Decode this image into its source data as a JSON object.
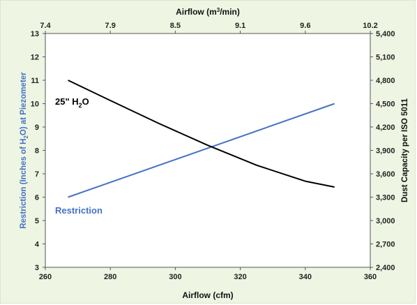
{
  "chart_data": {
    "type": "line",
    "title": "",
    "x_axis": {
      "label": "Airflow (cfm)",
      "range": [
        260,
        360
      ],
      "ticks": [
        260,
        280,
        300,
        320,
        340,
        360
      ]
    },
    "x2_axis": {
      "label_prefix": "Airflow (m",
      "label_sup": "3",
      "label_suffix": "/min)",
      "ticks": [
        "7.4",
        "7.9",
        "8.5",
        "9.1",
        "9.6",
        "10.2"
      ]
    },
    "y_axis": {
      "label_part1": "Restriction (Inches of H",
      "label_sub": "2",
      "label_part2": "O) at Piezometer",
      "range": [
        3,
        13
      ],
      "ticks": [
        3,
        4,
        5,
        6,
        7,
        8,
        9,
        10,
        11,
        12,
        13
      ]
    },
    "y2_axis": {
      "label": "Dust Capacity per ISO 5011",
      "range": [
        2400,
        5400
      ],
      "ticks": [
        "2,400",
        "2,700",
        "3,000",
        "3,300",
        "3,600",
        "3,900",
        "4,200",
        "4,500",
        "4,800",
        "5,100",
        "5,400"
      ]
    },
    "series": [
      {
        "name": "Restriction",
        "axis": "left",
        "color": "#4472c4",
        "x": [
          267,
          349
        ],
        "y": [
          6.0,
          10.0
        ]
      },
      {
        "name_main": "25\" H",
        "name_sub": "2",
        "name_end": "O",
        "axis": "right",
        "color": "#000000",
        "x": [
          267,
          280,
          295,
          310,
          325,
          340,
          349
        ],
        "y": [
          4800,
          4540,
          4245,
          3965,
          3710,
          3505,
          3430
        ]
      }
    ],
    "grid": false,
    "legend": "inline"
  }
}
